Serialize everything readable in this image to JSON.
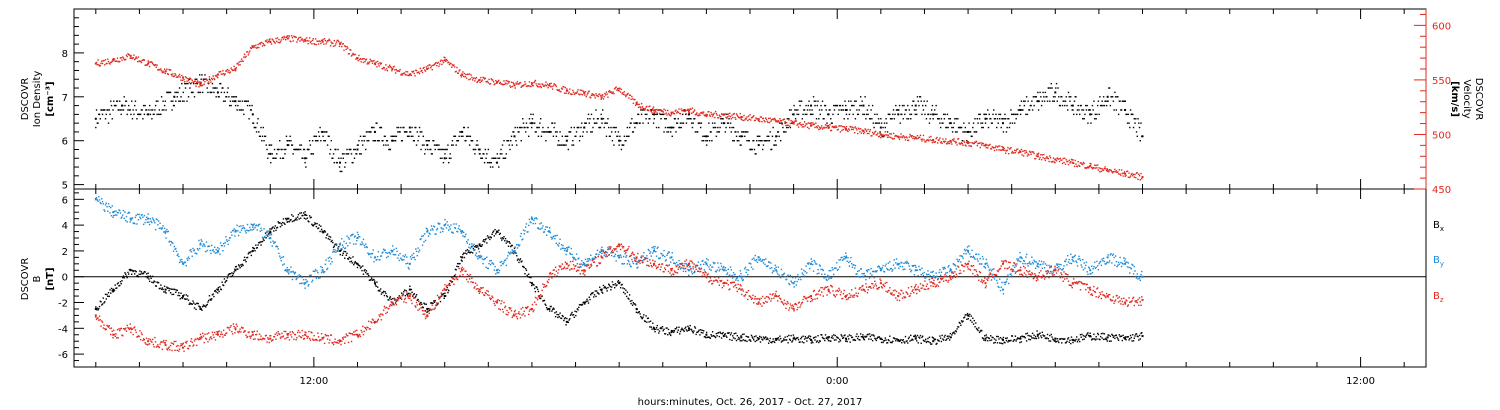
{
  "chart_data": [
    {
      "type": "scatter",
      "panel": "top",
      "ylabel_left": [
        "DSCOVR",
        "Ion Density",
        "[cm⁻³]"
      ],
      "ylabel_right": [
        "DSCOVR",
        "Velocity",
        "[km/s]"
      ],
      "ylim_left": [
        4.9,
        9.0
      ],
      "ylim_right": [
        450,
        615
      ],
      "yticks_left": [
        "5",
        "6",
        "7",
        "8"
      ],
      "yticks_right": [
        "450",
        "500",
        "550",
        "600"
      ],
      "series": [
        {
          "name": "Ion Density",
          "axis": "left",
          "color": "#000000",
          "x": [
            7.0,
            7.6,
            8.2,
            8.8,
            9.4,
            9.8,
            10.2,
            10.6,
            11.0,
            11.4,
            11.8,
            12.2,
            12.6,
            13.0,
            13.4,
            13.8,
            14.2,
            14.6,
            15.0,
            15.4,
            15.8,
            16.2,
            16.6,
            17.0,
            17.4,
            17.8,
            18.2,
            18.6,
            19.0,
            19.4,
            19.8,
            20.2,
            20.6,
            21.0,
            21.4,
            21.8,
            22.2,
            22.6,
            23.0,
            23.4,
            23.8,
            24.2,
            24.6,
            25.0,
            25.4,
            25.8,
            26.2,
            26.6,
            27.0,
            27.4,
            27.8,
            28.2,
            28.6,
            29.0,
            29.4,
            29.8,
            30.2,
            30.6,
            31.0
          ],
          "y": [
            6.5,
            6.8,
            6.6,
            7.0,
            7.3,
            7.1,
            6.9,
            6.6,
            5.7,
            5.9,
            5.6,
            6.2,
            5.5,
            5.8,
            6.2,
            6.0,
            6.3,
            5.9,
            5.6,
            6.2,
            5.8,
            5.5,
            6.1,
            6.4,
            6.2,
            6.0,
            6.3,
            6.5,
            6.0,
            6.4,
            6.6,
            6.3,
            6.6,
            6.1,
            6.4,
            6.1,
            5.9,
            6.1,
            6.6,
            6.8,
            6.6,
            6.7,
            6.8,
            6.3,
            6.6,
            6.8,
            6.6,
            6.4,
            6.2,
            6.5,
            6.4,
            6.7,
            6.9,
            7.1,
            6.8,
            6.6,
            7.0,
            6.7,
            6.1
          ]
        },
        {
          "name": "Velocity",
          "axis": "right",
          "color": "#e0281e",
          "x": [
            7.0,
            7.4,
            7.8,
            8.2,
            8.6,
            9.0,
            9.4,
            9.8,
            10.2,
            10.6,
            11.0,
            11.4,
            11.8,
            12.2,
            12.6,
            13.0,
            13.4,
            13.8,
            14.2,
            14.6,
            15.0,
            15.4,
            15.8,
            16.2,
            16.6,
            17.0,
            17.4,
            17.8,
            18.2,
            18.6,
            19.0,
            19.4,
            19.8,
            20.2,
            20.6,
            21.0,
            21.4,
            21.8,
            22.2,
            22.6,
            23.0,
            23.4,
            23.8,
            24.2,
            24.6,
            25.0,
            25.4,
            25.8,
            26.2,
            26.6,
            27.0,
            27.4,
            27.8,
            28.2,
            28.6,
            29.0,
            29.4,
            29.8,
            30.2,
            30.6,
            31.0
          ],
          "y": [
            565,
            568,
            572,
            565,
            558,
            552,
            545,
            555,
            560,
            580,
            585,
            588,
            586,
            585,
            583,
            570,
            565,
            560,
            555,
            560,
            568,
            555,
            550,
            548,
            545,
            547,
            545,
            540,
            538,
            534,
            542,
            528,
            522,
            520,
            522,
            518,
            518,
            516,
            514,
            512,
            510,
            508,
            506,
            505,
            503,
            500,
            498,
            497,
            495,
            494,
            492,
            490,
            486,
            484,
            480,
            477,
            474,
            471,
            467,
            464,
            461
          ]
        }
      ]
    },
    {
      "type": "scatter",
      "panel": "bottom",
      "ylabel": [
        "DSCOVR",
        "B",
        "[nT]"
      ],
      "ylim": [
        -7.0,
        6.8
      ],
      "yticks": [
        "-6",
        "-4",
        "-2",
        "0",
        "2",
        "4",
        "6"
      ],
      "zero_line": true,
      "series": [
        {
          "name": "Bx",
          "color": "#000000",
          "x": [
            7.0,
            7.4,
            7.8,
            8.2,
            8.6,
            9.0,
            9.4,
            9.8,
            10.2,
            10.6,
            11.0,
            11.4,
            11.8,
            12.2,
            12.6,
            13.0,
            13.4,
            13.8,
            14.2,
            14.6,
            15.0,
            15.4,
            15.8,
            16.2,
            16.6,
            17.0,
            17.4,
            17.8,
            18.2,
            18.6,
            19.0,
            19.4,
            19.8,
            20.2,
            20.6,
            21.0,
            21.4,
            21.8,
            22.2,
            22.6,
            23.0,
            23.4,
            23.8,
            24.2,
            24.6,
            25.0,
            25.4,
            25.8,
            26.2,
            26.6,
            27.0,
            27.4,
            27.8,
            28.2,
            28.6,
            29.0,
            29.4,
            29.8,
            30.2,
            30.6,
            31.0
          ],
          "y": [
            -2.5,
            -1.0,
            0.5,
            0.0,
            -1.0,
            -1.5,
            -2.5,
            -1.0,
            0.5,
            2.0,
            3.5,
            4.5,
            4.8,
            3.5,
            2.0,
            1.0,
            -0.5,
            -2.0,
            -1.0,
            -2.5,
            -1.5,
            1.5,
            2.5,
            3.5,
            2.0,
            -0.5,
            -2.5,
            -3.5,
            -2.0,
            -1.0,
            -0.5,
            -2.5,
            -4.0,
            -4.3,
            -4.0,
            -4.5,
            -4.6,
            -4.7,
            -4.8,
            -4.9,
            -4.8,
            -4.9,
            -4.7,
            -4.8,
            -4.7,
            -4.8,
            -4.9,
            -4.8,
            -5.0,
            -4.7,
            -3.0,
            -4.8,
            -4.9,
            -4.8,
            -4.5,
            -4.8,
            -4.9,
            -4.6,
            -4.7,
            -4.8,
            -4.6
          ]
        },
        {
          "name": "By",
          "color": "#1e8ad6",
          "x": [
            7.0,
            7.4,
            7.8,
            8.2,
            8.6,
            9.0,
            9.4,
            9.8,
            10.2,
            10.6,
            11.0,
            11.4,
            11.8,
            12.2,
            12.6,
            13.0,
            13.4,
            13.8,
            14.2,
            14.6,
            15.0,
            15.4,
            15.8,
            16.2,
            16.6,
            17.0,
            17.4,
            17.8,
            18.2,
            18.6,
            19.0,
            19.4,
            19.8,
            20.2,
            20.6,
            21.0,
            21.4,
            21.8,
            22.2,
            22.6,
            23.0,
            23.4,
            23.8,
            24.2,
            24.6,
            25.0,
            25.4,
            25.8,
            26.2,
            26.6,
            27.0,
            27.4,
            27.8,
            28.2,
            28.6,
            29.0,
            29.4,
            29.8,
            30.2,
            30.6,
            31.0
          ],
          "y": [
            6.0,
            5.0,
            4.5,
            4.5,
            3.5,
            1.0,
            2.5,
            2.0,
            3.5,
            4.0,
            3.0,
            0.5,
            -0.5,
            0.5,
            2.5,
            3.0,
            1.5,
            2.0,
            1.0,
            3.5,
            4.0,
            3.5,
            1.5,
            0.5,
            2.0,
            4.5,
            3.5,
            2.0,
            1.0,
            2.0,
            1.5,
            1.0,
            2.0,
            1.5,
            0.5,
            1.0,
            0.5,
            0.0,
            1.5,
            0.5,
            -0.5,
            1.0,
            0.0,
            1.5,
            0.0,
            0.5,
            1.0,
            0.5,
            0.0,
            0.5,
            2.0,
            1.0,
            -1.0,
            1.5,
            1.0,
            0.5,
            1.5,
            0.5,
            1.5,
            1.0,
            0.0
          ]
        },
        {
          "name": "Bz",
          "color": "#e0281e",
          "x": [
            7.0,
            7.4,
            7.8,
            8.2,
            8.6,
            9.0,
            9.4,
            9.8,
            10.2,
            10.6,
            11.0,
            11.4,
            11.8,
            12.2,
            12.6,
            13.0,
            13.4,
            13.8,
            14.2,
            14.6,
            15.0,
            15.4,
            15.8,
            16.2,
            16.6,
            17.0,
            17.4,
            17.8,
            18.2,
            18.6,
            19.0,
            19.4,
            19.8,
            20.2,
            20.6,
            21.0,
            21.4,
            21.8,
            22.2,
            22.6,
            23.0,
            23.4,
            23.8,
            24.2,
            24.6,
            25.0,
            25.4,
            25.8,
            26.2,
            26.6,
            27.0,
            27.4,
            27.8,
            28.2,
            28.6,
            29.0,
            29.4,
            29.8,
            30.2,
            30.6,
            31.0
          ],
          "y": [
            -3.0,
            -4.5,
            -4.0,
            -5.0,
            -5.3,
            -5.5,
            -4.8,
            -4.5,
            -4.0,
            -4.5,
            -4.8,
            -4.5,
            -4.5,
            -4.8,
            -5.0,
            -4.5,
            -3.5,
            -2.0,
            -1.5,
            -3.0,
            -1.0,
            0.5,
            -1.0,
            -2.0,
            -3.0,
            -2.5,
            0.0,
            1.0,
            0.5,
            1.5,
            2.5,
            1.5,
            1.0,
            0.5,
            1.0,
            0.0,
            -0.5,
            -1.0,
            -2.0,
            -1.5,
            -2.5,
            -1.5,
            -1.0,
            -1.5,
            -1.0,
            -0.5,
            -1.5,
            -1.0,
            -0.5,
            0.0,
            1.0,
            -0.5,
            1.0,
            0.5,
            0.0,
            0.5,
            -0.5,
            -1.0,
            -1.5,
            -2.0,
            -1.8
          ]
        }
      ]
    },
    {
      "type": "axis",
      "panel": "time-axis",
      "xlim": [
        6.5,
        37.5
      ],
      "xticks": [
        {
          "x": 12,
          "label": "12:00"
        },
        {
          "x": 24,
          "label": "0:00"
        },
        {
          "x": 36,
          "label": "12:00"
        }
      ],
      "xlabel": "hours:minutes, Oct. 26, 2017 - Oct. 27, 2017"
    }
  ],
  "legend": {
    "bx_main": "B",
    "bx_sub": "x",
    "by_main": "B",
    "by_sub": "y",
    "bz_main": "B",
    "bz_sub": "z"
  }
}
